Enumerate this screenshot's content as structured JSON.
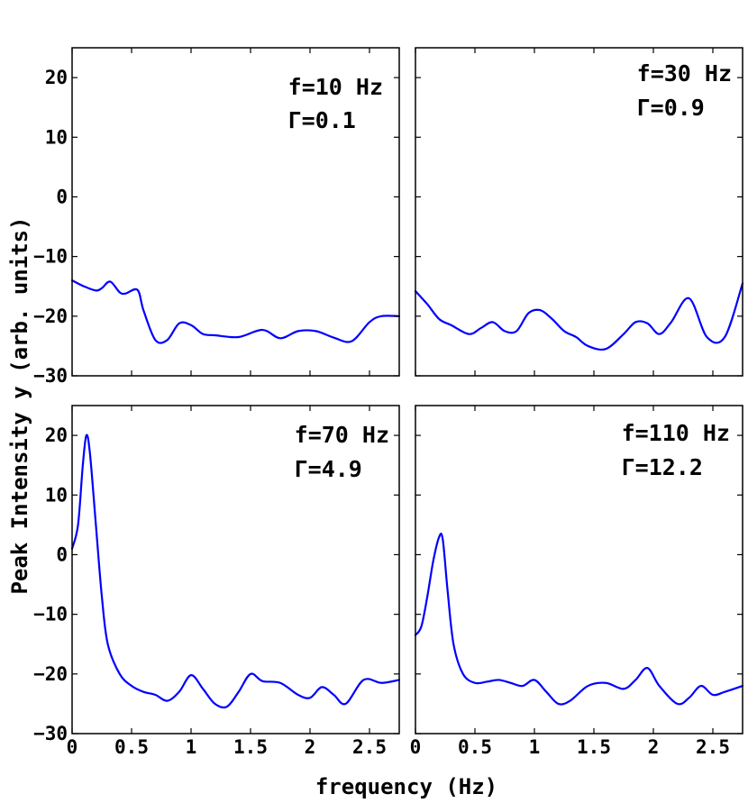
{
  "chart_data": {
    "type": "line",
    "xlabel": "frequency (Hz)",
    "ylabel": "Peak Intensity y (arb. units)",
    "xlim": [
      0,
      2.75
    ],
    "ylim": [
      -30,
      25
    ],
    "x_ticks": [
      0,
      0.5,
      1,
      1.5,
      2,
      2.5
    ],
    "x_tick_labels": [
      "0",
      "0.5",
      "1",
      "1.5",
      "2",
      "2.5"
    ],
    "y_ticks": [
      -30,
      -20,
      -10,
      0,
      10,
      20
    ],
    "y_tick_labels": [
      "−30",
      "−20",
      "−10",
      "0",
      "10",
      "20"
    ],
    "line_color": "#0000ff",
    "grid": false,
    "panels": [
      {
        "f_label": "f=10 Hz",
        "gamma_label": "Γ=0.1",
        "x": [
          0,
          0.1,
          0.2,
          0.25,
          0.32,
          0.4,
          0.45,
          0.55,
          0.6,
          0.7,
          0.8,
          0.9,
          1.0,
          1.1,
          1.2,
          1.4,
          1.6,
          1.75,
          1.9,
          2.05,
          2.2,
          2.35,
          2.5,
          2.6,
          2.75
        ],
        "y": [
          -14,
          -15,
          -15.7,
          -15.3,
          -14.2,
          -16,
          -16.2,
          -15.6,
          -19,
          -24,
          -24,
          -21.2,
          -21.5,
          -23,
          -23.2,
          -23.5,
          -22.3,
          -23.7,
          -22.5,
          -22.5,
          -23.6,
          -24.2,
          -21,
          -20,
          -20
        ]
      },
      {
        "f_label": "f=30 Hz",
        "gamma_label": "Γ=0.9",
        "x": [
          0,
          0.1,
          0.2,
          0.3,
          0.45,
          0.55,
          0.65,
          0.75,
          0.85,
          0.95,
          1.05,
          1.15,
          1.25,
          1.35,
          1.45,
          1.6,
          1.75,
          1.85,
          1.95,
          2.05,
          2.15,
          2.3,
          2.45,
          2.6,
          2.75
        ],
        "y": [
          -15.8,
          -18,
          -20.5,
          -21.5,
          -23,
          -22,
          -21,
          -22.5,
          -22.5,
          -19.5,
          -19,
          -20.5,
          -22.5,
          -23.5,
          -25,
          -25.5,
          -23,
          -21,
          -21.2,
          -23,
          -21,
          -17,
          -23.5,
          -23.5,
          -14.5
        ]
      },
      {
        "f_label": "f=70 Hz",
        "gamma_label": "Γ=4.9",
        "x": [
          0,
          0.05,
          0.09,
          0.12,
          0.15,
          0.2,
          0.25,
          0.3,
          0.4,
          0.5,
          0.6,
          0.7,
          0.8,
          0.9,
          1.0,
          1.1,
          1.2,
          1.3,
          1.4,
          1.5,
          1.6,
          1.75,
          1.9,
          2.0,
          2.1,
          2.2,
          2.3,
          2.45,
          2.6,
          2.75
        ],
        "y": [
          1,
          5,
          15,
          20,
          17,
          5,
          -7,
          -15,
          -20,
          -22,
          -23,
          -23.5,
          -24.5,
          -23,
          -20.2,
          -22.5,
          -25,
          -25.5,
          -23,
          -20,
          -21.2,
          -21.5,
          -23.5,
          -24,
          -22.2,
          -23.5,
          -25,
          -21,
          -21.5,
          -21
        ]
      },
      {
        "f_label": "f=110 Hz",
        "gamma_label": "Γ=12.2",
        "x": [
          0,
          0.05,
          0.1,
          0.15,
          0.2,
          0.23,
          0.27,
          0.32,
          0.4,
          0.5,
          0.6,
          0.7,
          0.8,
          0.9,
          1.0,
          1.1,
          1.2,
          1.3,
          1.45,
          1.6,
          1.75,
          1.85,
          1.95,
          2.05,
          2.2,
          2.3,
          2.4,
          2.5,
          2.6,
          2.75
        ],
        "y": [
          -13.5,
          -12,
          -7,
          -1,
          3,
          2.5,
          -6,
          -15,
          -20,
          -21.5,
          -21.3,
          -21,
          -21.5,
          -22,
          -21,
          -23,
          -25,
          -24.5,
          -22,
          -21.5,
          -22.5,
          -21,
          -19,
          -22,
          -25,
          -24,
          -22,
          -23.5,
          -23,
          -22
        ]
      }
    ]
  }
}
